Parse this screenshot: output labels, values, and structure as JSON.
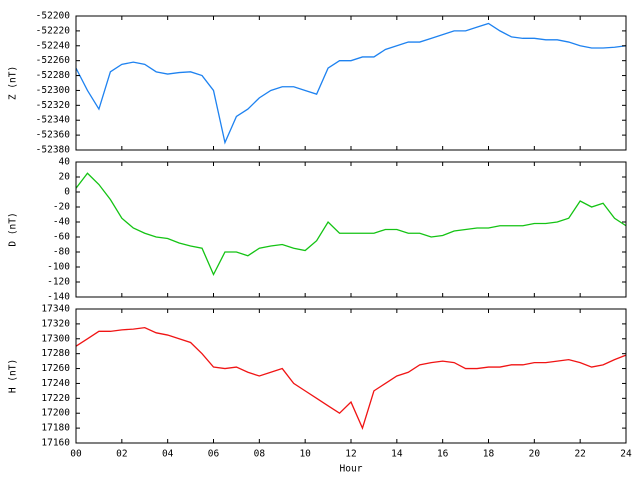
{
  "chart_data": [
    {
      "type": "line",
      "ylabel": "Z (nT)",
      "color": "#1e82f0",
      "x": [
        0,
        0.5,
        1,
        1.5,
        2,
        2.5,
        3,
        3.5,
        4,
        4.5,
        5,
        5.5,
        6,
        6.5,
        7,
        7.5,
        8,
        8.5,
        9,
        9.5,
        10,
        10.5,
        11,
        11.5,
        12,
        12.5,
        13,
        13.5,
        14,
        14.5,
        15,
        15.5,
        16,
        16.5,
        17,
        17.5,
        18,
        18.5,
        19,
        19.5,
        20,
        20.5,
        21,
        21.5,
        22,
        22.5,
        23,
        23.5,
        24
      ],
      "values": [
        -52270,
        -52300,
        -52325,
        -52275,
        -52265,
        -52262,
        -52265,
        -52275,
        -52278,
        -52276,
        -52275,
        -52280,
        -52300,
        -52370,
        -52335,
        -52325,
        -52310,
        -52300,
        -52295,
        -52295,
        -52300,
        -52305,
        -52270,
        -52260,
        -52260,
        -52255,
        -52255,
        -52245,
        -52240,
        -52235,
        -52235,
        -52230,
        -52225,
        -52220,
        -52220,
        -52215,
        -52210,
        -52220,
        -52228,
        -52230,
        -52230,
        -52232,
        -52232,
        -52235,
        -52240,
        -52243,
        -52243,
        -52242,
        -52240
      ],
      "xlim": [
        0,
        24
      ],
      "xticks": [
        0,
        2,
        4,
        6,
        8,
        10,
        12,
        14,
        16,
        18,
        20,
        22,
        24
      ],
      "ylim": [
        -52380,
        -52200
      ],
      "yticks": [
        -52380,
        -52360,
        -52340,
        -52320,
        -52300,
        -52280,
        -52260,
        -52240,
        -52220,
        -52200
      ]
    },
    {
      "type": "line",
      "ylabel": "D (nT)",
      "color": "#14c314",
      "x": [
        0,
        0.5,
        1,
        1.5,
        2,
        2.5,
        3,
        3.5,
        4,
        4.5,
        5,
        5.5,
        6,
        6.5,
        7,
        7.5,
        8,
        8.5,
        9,
        9.5,
        10,
        10.5,
        11,
        11.5,
        12,
        12.5,
        13,
        13.5,
        14,
        14.5,
        15,
        15.5,
        16,
        16.5,
        17,
        17.5,
        18,
        18.5,
        19,
        19.5,
        20,
        20.5,
        21,
        21.5,
        22,
        22.5,
        23,
        23.5,
        24
      ],
      "values": [
        5,
        25,
        10,
        -10,
        -35,
        -48,
        -55,
        -60,
        -62,
        -68,
        -72,
        -75,
        -110,
        -80,
        -80,
        -85,
        -75,
        -72,
        -70,
        -75,
        -78,
        -65,
        -40,
        -55,
        -55,
        -55,
        -55,
        -50,
        -50,
        -55,
        -55,
        -60,
        -58,
        -52,
        -50,
        -48,
        -48,
        -45,
        -45,
        -45,
        -42,
        -42,
        -40,
        -35,
        -12,
        -20,
        -15,
        -35,
        -45
      ],
      "xlim": [
        0,
        24
      ],
      "xticks": [
        0,
        2,
        4,
        6,
        8,
        10,
        12,
        14,
        16,
        18,
        20,
        22,
        24
      ],
      "ylim": [
        -140,
        40
      ],
      "yticks": [
        -140,
        -120,
        -100,
        -80,
        -60,
        -40,
        -20,
        0,
        20,
        40
      ]
    },
    {
      "type": "line",
      "ylabel": "H (nT)",
      "xlabel": "Hour",
      "color": "#f01414",
      "x": [
        0,
        0.5,
        1,
        1.5,
        2,
        2.5,
        3,
        3.5,
        4,
        4.5,
        5,
        5.5,
        6,
        6.5,
        7,
        7.5,
        8,
        8.5,
        9,
        9.5,
        10,
        10.5,
        11,
        11.5,
        12,
        12.5,
        13,
        13.5,
        14,
        14.5,
        15,
        15.5,
        16,
        16.5,
        17,
        17.5,
        18,
        18.5,
        19,
        19.5,
        20,
        20.5,
        21,
        21.5,
        22,
        22.5,
        23,
        23.5,
        24
      ],
      "values": [
        17290,
        17300,
        17310,
        17310,
        17312,
        17313,
        17315,
        17308,
        17305,
        17300,
        17295,
        17280,
        17262,
        17260,
        17262,
        17255,
        17250,
        17255,
        17260,
        17240,
        17230,
        17220,
        17210,
        17200,
        17215,
        17180,
        17230,
        17240,
        17250,
        17255,
        17265,
        17268,
        17270,
        17268,
        17260,
        17260,
        17262,
        17262,
        17265,
        17265,
        17268,
        17268,
        17270,
        17272,
        17268,
        17262,
        17265,
        17272,
        17278
      ],
      "xlim": [
        0,
        24
      ],
      "xticks": [
        {
          "value": 0,
          "label": "00"
        },
        {
          "value": 2,
          "label": "02"
        },
        {
          "value": 4,
          "label": "04"
        },
        {
          "value": 6,
          "label": "06"
        },
        {
          "value": 8,
          "label": "08"
        },
        {
          "value": 10,
          "label": "10"
        },
        {
          "value": 12,
          "label": "12"
        },
        {
          "value": 14,
          "label": "14"
        },
        {
          "value": 16,
          "label": "16"
        },
        {
          "value": 18,
          "label": "18"
        },
        {
          "value": 20,
          "label": "20"
        },
        {
          "value": 22,
          "label": "22"
        },
        {
          "value": 24,
          "label": "24"
        }
      ],
      "ylim": [
        17160,
        17340
      ],
      "yticks": [
        17160,
        17180,
        17200,
        17220,
        17240,
        17260,
        17280,
        17300,
        17320,
        17340
      ]
    }
  ]
}
